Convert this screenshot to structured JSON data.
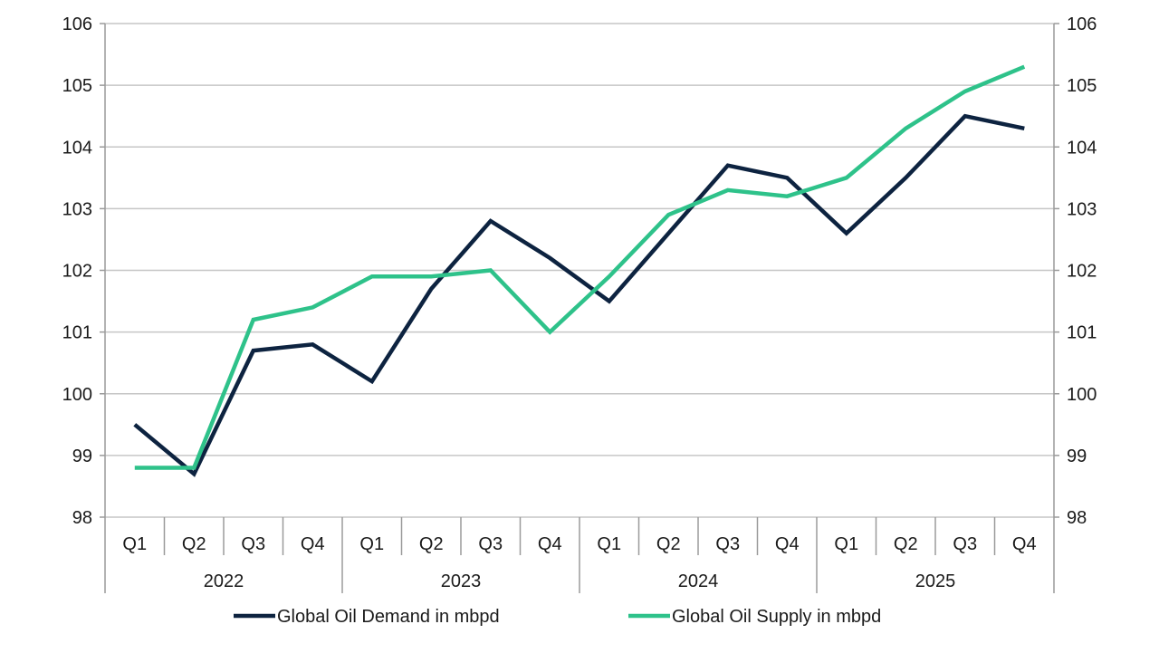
{
  "chart_data": {
    "type": "line",
    "categories": [
      "Q1",
      "Q2",
      "Q3",
      "Q4",
      "Q1",
      "Q2",
      "Q3",
      "Q4",
      "Q1",
      "Q2",
      "Q3",
      "Q4",
      "Q1",
      "Q2",
      "Q3",
      "Q4"
    ],
    "year_groups": [
      {
        "label": "2022",
        "count": 4
      },
      {
        "label": "2023",
        "count": 4
      },
      {
        "label": "2024",
        "count": 4
      },
      {
        "label": "2025",
        "count": 4
      }
    ],
    "series": [
      {
        "name": "Global Oil Demand in mbpd",
        "color": "#0d2340",
        "values": [
          99.5,
          98.7,
          100.7,
          100.8,
          100.2,
          101.7,
          102.8,
          102.2,
          101.5,
          102.6,
          103.7,
          103.5,
          102.6,
          103.5,
          104.5,
          104.3
        ]
      },
      {
        "name": "Global Oil Supply in mbpd",
        "color": "#2ec28a",
        "values": [
          98.8,
          98.8,
          101.2,
          101.4,
          101.9,
          101.9,
          102.0,
          101.0,
          101.9,
          102.9,
          103.3,
          103.2,
          103.5,
          104.3,
          104.9,
          105.3
        ]
      }
    ],
    "ylim": [
      98,
      106
    ],
    "yticks": [
      "98",
      "99",
      "100",
      "101",
      "102",
      "103",
      "104",
      "105",
      "106"
    ],
    "secondary_yticks": [
      "98",
      "99",
      "100",
      "101",
      "102",
      "103",
      "104",
      "105",
      "106"
    ],
    "grid": true,
    "legend_position": "bottom"
  }
}
